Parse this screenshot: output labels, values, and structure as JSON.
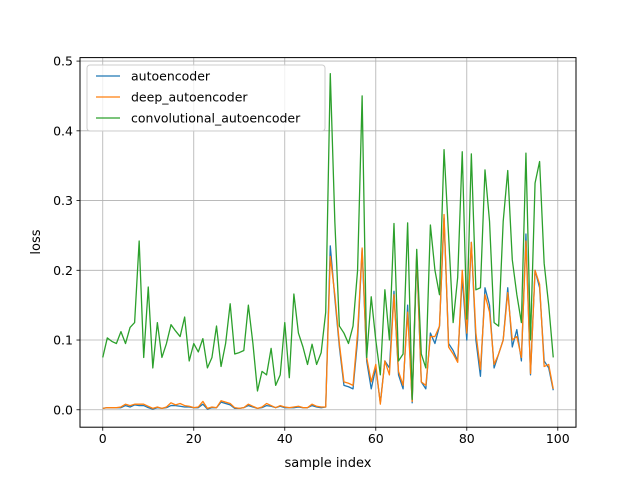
{
  "chart_data": {
    "type": "line",
    "title": "",
    "xlabel": "sample index",
    "ylabel": "loss",
    "xlim": [
      -5,
      104
    ],
    "ylim": [
      -0.025,
      0.505
    ],
    "xticks": [
      0,
      20,
      40,
      60,
      80,
      100
    ],
    "yticks": [
      0.0,
      0.1,
      0.2,
      0.3,
      0.4,
      0.5
    ],
    "xtick_labels": [
      "0",
      "20",
      "40",
      "60",
      "80",
      "100"
    ],
    "ytick_labels": [
      "0.0",
      "0.1",
      "0.2",
      "0.3",
      "0.4",
      "0.5"
    ],
    "grid": true,
    "legend_position": "top-left",
    "x": [
      0,
      1,
      2,
      3,
      4,
      5,
      6,
      7,
      8,
      9,
      10,
      11,
      12,
      13,
      14,
      15,
      16,
      17,
      18,
      19,
      20,
      21,
      22,
      23,
      24,
      25,
      26,
      27,
      28,
      29,
      30,
      31,
      32,
      33,
      34,
      35,
      36,
      37,
      38,
      39,
      40,
      41,
      42,
      43,
      44,
      45,
      46,
      47,
      48,
      49,
      50,
      51,
      52,
      53,
      54,
      55,
      56,
      57,
      58,
      59,
      60,
      61,
      62,
      63,
      64,
      65,
      66,
      67,
      68,
      69,
      70,
      71,
      72,
      73,
      74,
      75,
      76,
      77,
      78,
      79,
      80,
      81,
      82,
      83,
      84,
      85,
      86,
      87,
      88,
      89,
      90,
      91,
      92,
      93,
      94,
      95,
      96,
      97,
      98,
      99
    ],
    "series": [
      {
        "name": "autoencoder",
        "color": "#1f77b4",
        "values": [
          0.002,
          0.003,
          0.003,
          0.003,
          0.003,
          0.006,
          0.004,
          0.007,
          0.006,
          0.006,
          0.003,
          0.001,
          0.003,
          0.002,
          0.003,
          0.006,
          0.006,
          0.005,
          0.004,
          0.004,
          0.003,
          0.003,
          0.008,
          0.001,
          0.003,
          0.003,
          0.011,
          0.009,
          0.007,
          0.002,
          0.002,
          0.003,
          0.006,
          0.004,
          0.002,
          0.003,
          0.006,
          0.005,
          0.003,
          0.005,
          0.003,
          0.003,
          0.003,
          0.004,
          0.003,
          0.003,
          0.006,
          0.004,
          0.003,
          0.004,
          0.235,
          0.16,
          0.09,
          0.035,
          0.033,
          0.03,
          0.1,
          0.23,
          0.07,
          0.03,
          0.06,
          0.01,
          0.07,
          0.06,
          0.17,
          0.05,
          0.03,
          0.15,
          0.01,
          0.22,
          0.04,
          0.03,
          0.11,
          0.095,
          0.12,
          0.275,
          0.095,
          0.085,
          0.07,
          0.19,
          0.1,
          0.24,
          0.1,
          0.048,
          0.175,
          0.15,
          0.06,
          0.08,
          0.1,
          0.175,
          0.09,
          0.115,
          0.07,
          0.252,
          0.05,
          0.2,
          0.175,
          0.07,
          0.06,
          0.028
        ]
      },
      {
        "name": "deep_autoencoder",
        "color": "#ff7f0e",
        "values": [
          0.002,
          0.003,
          0.003,
          0.003,
          0.004,
          0.008,
          0.006,
          0.008,
          0.008,
          0.008,
          0.005,
          0.002,
          0.004,
          0.002,
          0.004,
          0.01,
          0.007,
          0.009,
          0.006,
          0.005,
          0.003,
          0.004,
          0.012,
          0.002,
          0.004,
          0.003,
          0.013,
          0.011,
          0.009,
          0.003,
          0.002,
          0.003,
          0.008,
          0.005,
          0.002,
          0.004,
          0.009,
          0.006,
          0.003,
          0.006,
          0.004,
          0.003,
          0.004,
          0.005,
          0.003,
          0.003,
          0.008,
          0.005,
          0.004,
          0.004,
          0.22,
          0.165,
          0.095,
          0.04,
          0.038,
          0.035,
          0.11,
          0.232,
          0.075,
          0.04,
          0.065,
          0.008,
          0.07,
          0.05,
          0.165,
          0.055,
          0.035,
          0.14,
          0.012,
          0.225,
          0.04,
          0.035,
          0.105,
          0.105,
          0.12,
          0.28,
          0.09,
          0.08,
          0.068,
          0.2,
          0.11,
          0.24,
          0.11,
          0.058,
          0.165,
          0.14,
          0.065,
          0.08,
          0.1,
          0.168,
          0.1,
          0.105,
          0.075,
          0.242,
          0.052,
          0.2,
          0.18,
          0.062,
          0.065,
          0.03
        ]
      },
      {
        "name": "convolutional_autoencoder",
        "color": "#2ca02c",
        "values": [
          0.075,
          0.103,
          0.098,
          0.095,
          0.112,
          0.095,
          0.118,
          0.125,
          0.242,
          0.075,
          0.176,
          0.06,
          0.125,
          0.075,
          0.095,
          0.122,
          0.113,
          0.105,
          0.133,
          0.07,
          0.095,
          0.083,
          0.102,
          0.06,
          0.075,
          0.12,
          0.062,
          0.095,
          0.152,
          0.08,
          0.082,
          0.085,
          0.15,
          0.095,
          0.027,
          0.055,
          0.05,
          0.088,
          0.035,
          0.05,
          0.125,
          0.046,
          0.166,
          0.11,
          0.09,
          0.065,
          0.094,
          0.065,
          0.082,
          0.14,
          0.482,
          0.27,
          0.12,
          0.11,
          0.095,
          0.12,
          0.2,
          0.45,
          0.075,
          0.162,
          0.1,
          0.05,
          0.172,
          0.1,
          0.267,
          0.07,
          0.08,
          0.268,
          0.015,
          0.23,
          0.08,
          0.06,
          0.265,
          0.2,
          0.165,
          0.373,
          0.25,
          0.125,
          0.19,
          0.37,
          0.13,
          0.367,
          0.172,
          0.175,
          0.344,
          0.27,
          0.125,
          0.12,
          0.27,
          0.343,
          0.215,
          0.165,
          0.125,
          0.368,
          0.1,
          0.325,
          0.356,
          0.21,
          0.15,
          0.075
        ]
      }
    ]
  }
}
